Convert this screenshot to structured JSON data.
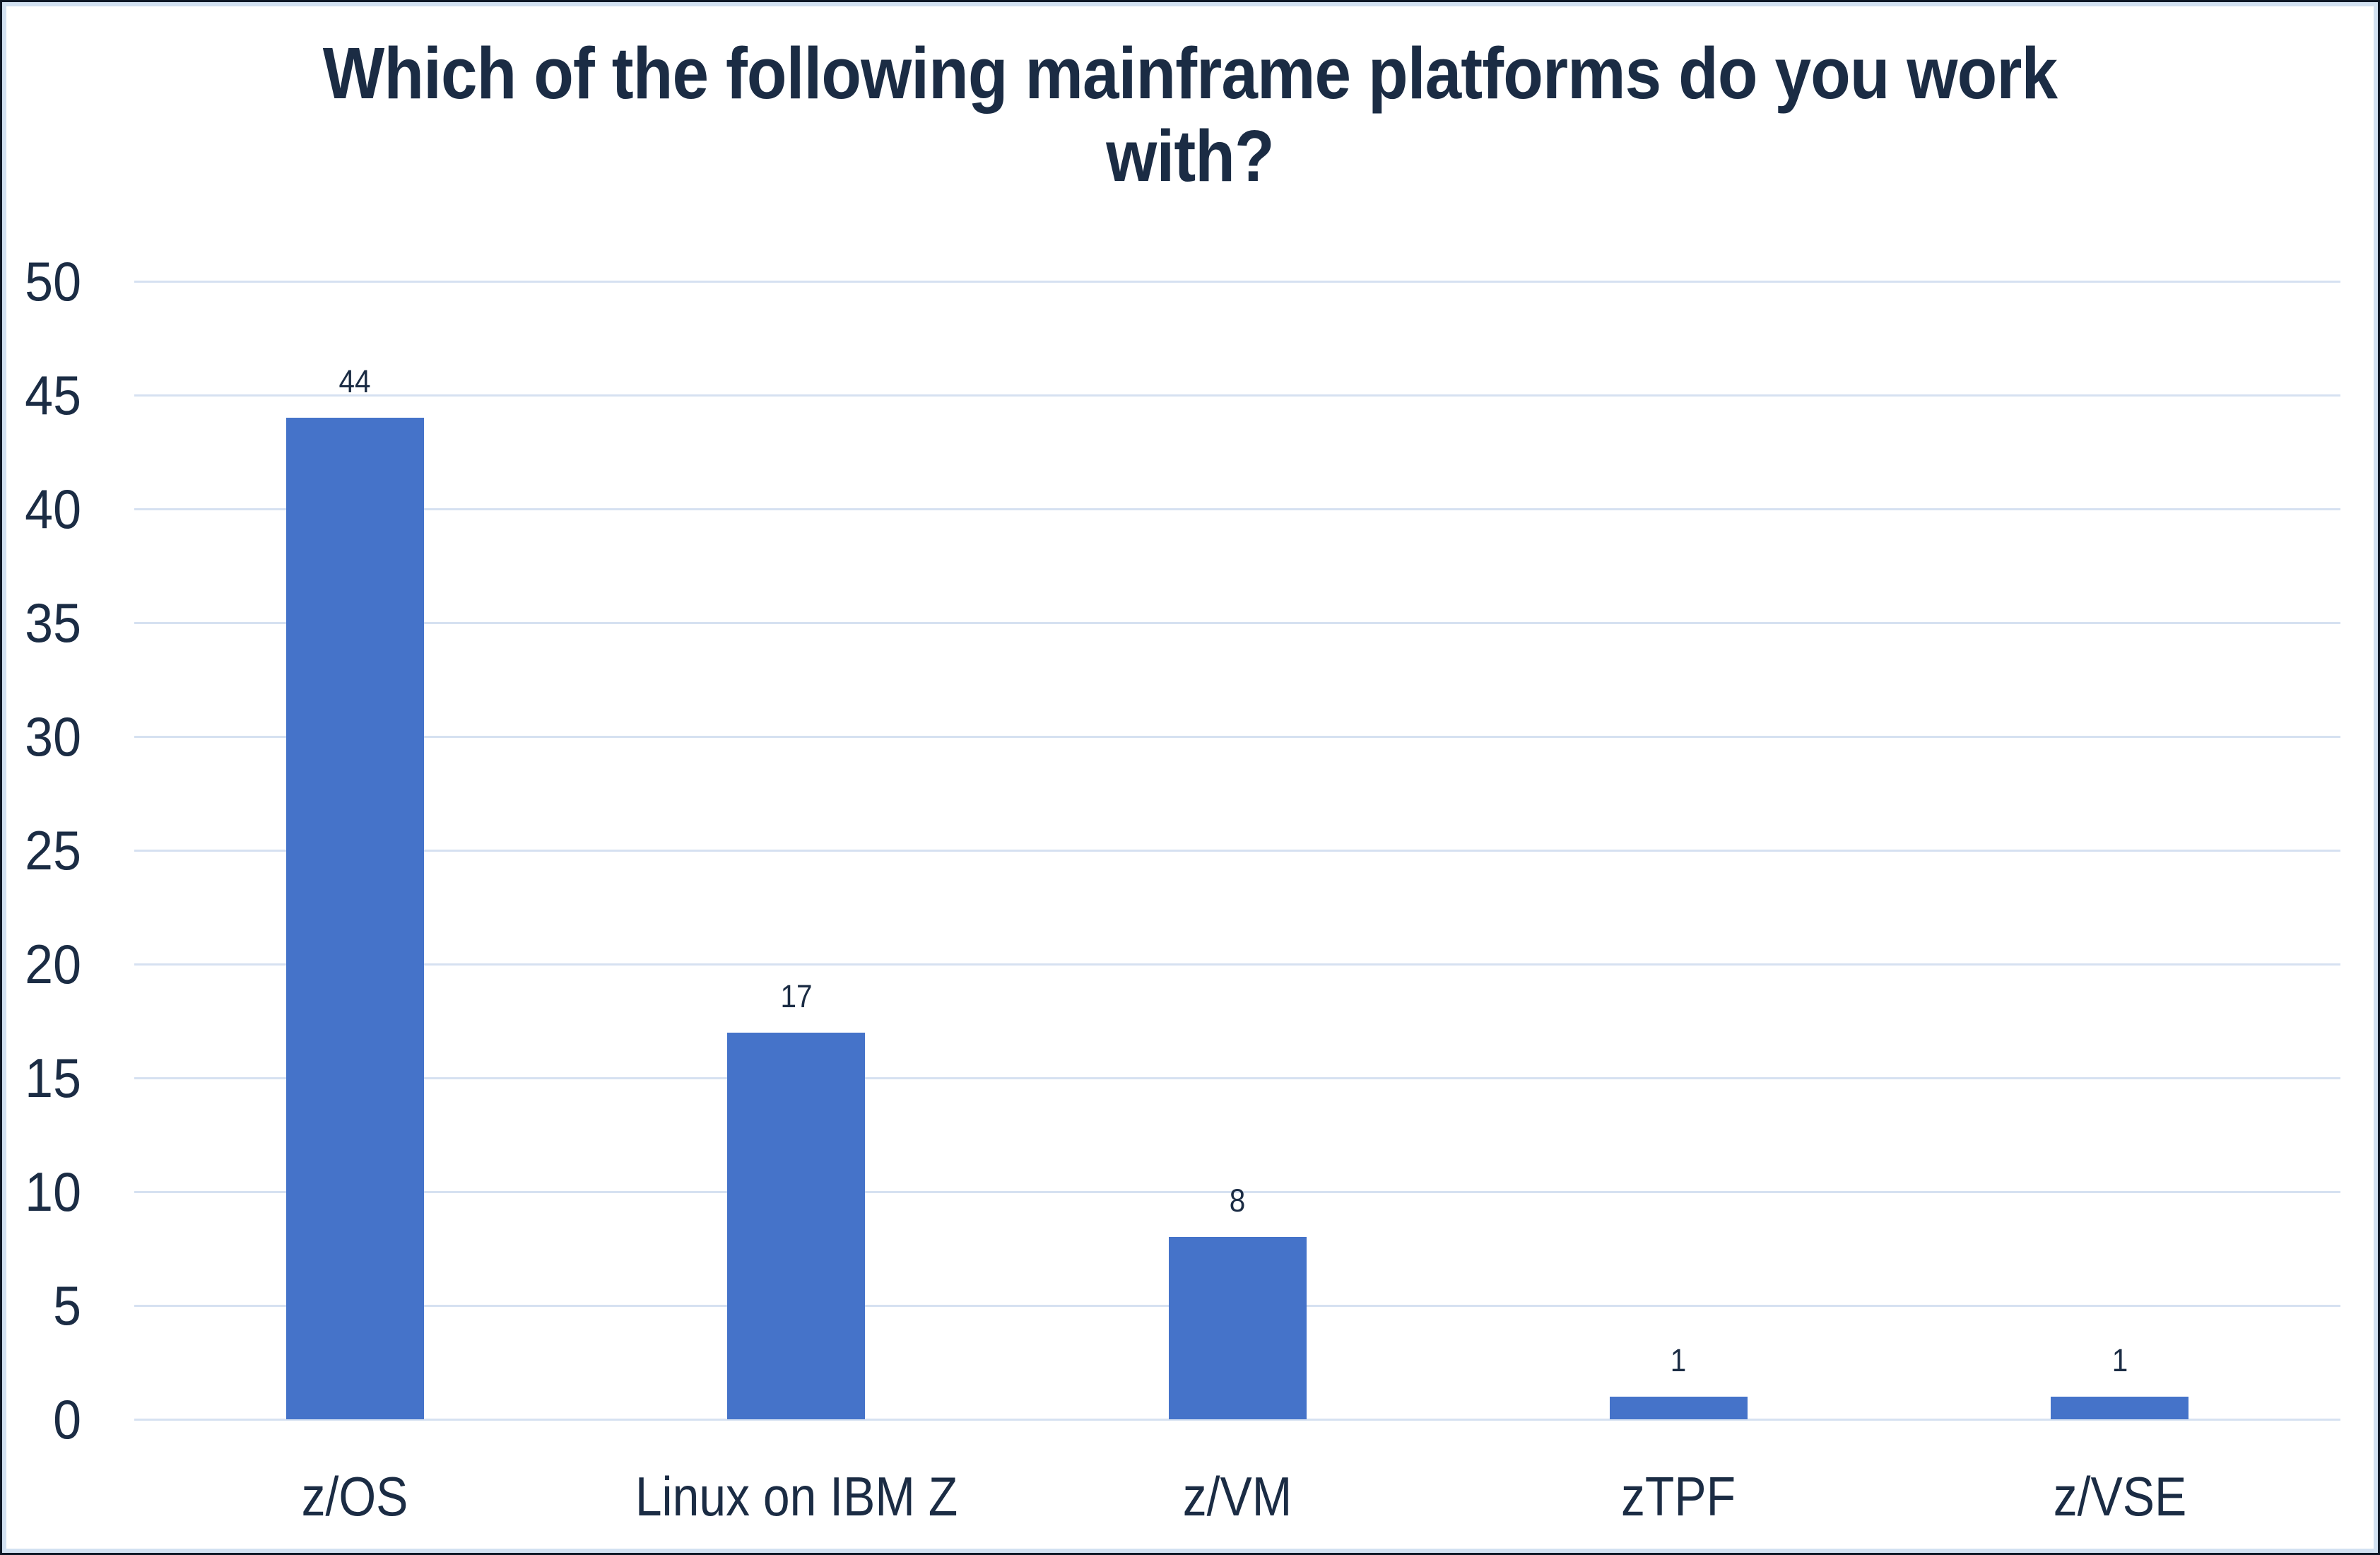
{
  "chart_data": {
    "type": "bar",
    "title": "Which of the following mainframe platforms do you work with?",
    "categories": [
      "z/OS",
      "Linux on IBM Z",
      "z/VM",
      "zTPF",
      "z/VSE"
    ],
    "values": [
      44,
      17,
      8,
      1,
      1
    ],
    "ylim": [
      0,
      50
    ],
    "ytick_step": 5,
    "ytick_labels": [
      "0",
      "5",
      "10",
      "15",
      "20",
      "25",
      "30",
      "35",
      "40",
      "45",
      "50"
    ],
    "grid": true,
    "legend": false,
    "data_labels_shown": true,
    "colors": {
      "bar_fill": "#4573c9",
      "text": "#1b2c44",
      "gridline": "#d6e1f1",
      "frame_outer": "#0e1826",
      "frame_inner_stroke": "#d2e1f1",
      "background": "#ffffff"
    }
  }
}
